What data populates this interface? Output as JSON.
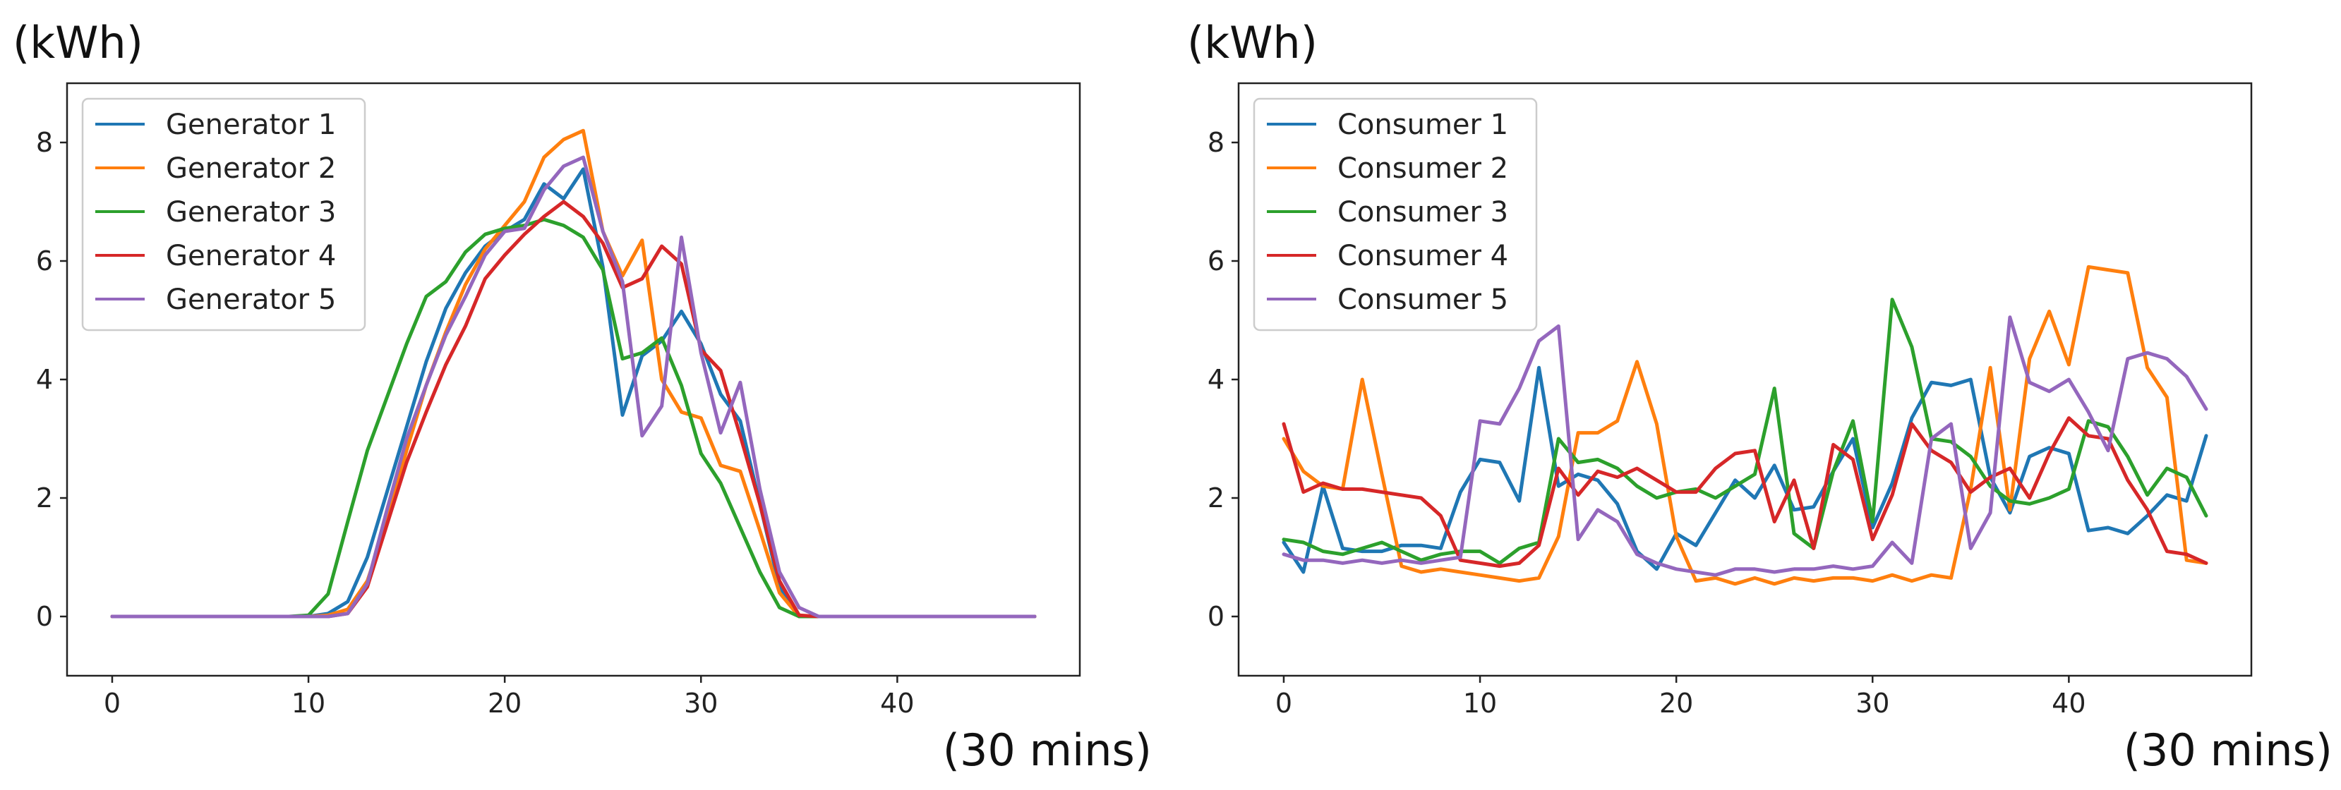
{
  "chart_data": [
    {
      "type": "line",
      "ylabel": "(kWh)",
      "xlabel": "(30 mins)",
      "xlim": [
        -2.3,
        49.3
      ],
      "ylim": [
        -1,
        9
      ],
      "xticks": [
        "0",
        "10",
        "20",
        "30",
        "40"
      ],
      "yticks": [
        "0",
        "2",
        "4",
        "6",
        "8"
      ],
      "legend_position": "top-left",
      "grid": false,
      "series": [
        {
          "name": "Generator 1",
          "color": "#1f77b4",
          "values": [
            0,
            0,
            0,
            0,
            0,
            0,
            0,
            0,
            0,
            0,
            0,
            0.05,
            0.25,
            1.0,
            2.1,
            3.2,
            4.3,
            5.2,
            5.8,
            6.25,
            6.5,
            6.7,
            7.3,
            7.05,
            7.55,
            5.9,
            3.4,
            4.4,
            4.65,
            5.15,
            4.6,
            3.75,
            3.3,
            1.9,
            0.5,
            0,
            0,
            0,
            0,
            0,
            0,
            0,
            0,
            0,
            0,
            0,
            0,
            0
          ]
        },
        {
          "name": "Generator 2",
          "color": "#ff7f0e",
          "values": [
            0,
            0,
            0,
            0,
            0,
            0,
            0,
            0,
            0,
            0,
            0,
            0.02,
            0.12,
            0.6,
            1.6,
            2.8,
            3.9,
            4.8,
            5.6,
            6.2,
            6.6,
            7.0,
            7.75,
            8.05,
            8.2,
            6.5,
            5.75,
            6.35,
            4.0,
            3.45,
            3.35,
            2.55,
            2.45,
            1.45,
            0.4,
            0,
            0,
            0,
            0,
            0,
            0,
            0,
            0,
            0,
            0,
            0,
            0,
            0
          ]
        },
        {
          "name": "Generator 3",
          "color": "#2ca02c",
          "values": [
            0,
            0,
            0,
            0,
            0,
            0,
            0,
            0,
            0,
            0,
            0.02,
            0.38,
            1.6,
            2.8,
            3.7,
            4.6,
            5.4,
            5.65,
            6.15,
            6.45,
            6.55,
            6.6,
            6.7,
            6.6,
            6.4,
            5.85,
            4.35,
            4.45,
            4.7,
            3.9,
            2.75,
            2.25,
            1.5,
            0.75,
            0.15,
            0,
            0,
            0,
            0,
            0,
            0,
            0,
            0,
            0,
            0,
            0,
            0,
            0
          ]
        },
        {
          "name": "Generator 4",
          "color": "#d62728",
          "values": [
            0,
            0,
            0,
            0,
            0,
            0,
            0,
            0,
            0,
            0,
            0,
            0,
            0.05,
            0.5,
            1.55,
            2.6,
            3.45,
            4.25,
            4.9,
            5.7,
            6.1,
            6.45,
            6.75,
            7.0,
            6.75,
            6.3,
            5.55,
            5.7,
            6.25,
            5.95,
            4.5,
            4.15,
            3.05,
            1.9,
            0.6,
            0.02,
            0,
            0,
            0,
            0,
            0,
            0,
            0,
            0,
            0,
            0,
            0,
            0
          ]
        },
        {
          "name": "Generator 5",
          "color": "#9467bd",
          "values": [
            0,
            0,
            0,
            0,
            0,
            0,
            0,
            0,
            0,
            0,
            0,
            0,
            0.05,
            0.55,
            1.8,
            3.0,
            3.9,
            4.75,
            5.4,
            6.1,
            6.5,
            6.55,
            7.2,
            7.6,
            7.75,
            6.5,
            5.65,
            3.05,
            3.55,
            6.4,
            4.45,
            3.1,
            3.95,
            2.15,
            0.75,
            0.15,
            0,
            0,
            0,
            0,
            0,
            0,
            0,
            0,
            0,
            0,
            0,
            0
          ]
        }
      ]
    },
    {
      "type": "line",
      "ylabel": "(kWh)",
      "xlabel": "(30 mins)",
      "xlim": [
        -2.3,
        49.3
      ],
      "ylim": [
        -1,
        9
      ],
      "xticks": [
        "0",
        "10",
        "20",
        "30",
        "40"
      ],
      "yticks": [
        "0",
        "2",
        "4",
        "6",
        "8"
      ],
      "legend_position": "top-left",
      "grid": false,
      "series": [
        {
          "name": "Consumer 1",
          "color": "#1f77b4",
          "values": [
            1.25,
            0.75,
            2.2,
            1.15,
            1.1,
            1.1,
            1.2,
            1.2,
            1.15,
            2.1,
            2.65,
            2.6,
            1.95,
            4.2,
            2.2,
            2.4,
            2.3,
            1.9,
            1.1,
            0.8,
            1.4,
            1.2,
            1.75,
            2.3,
            2.0,
            2.55,
            1.8,
            1.85,
            2.45,
            3.0,
            1.5,
            2.25,
            3.35,
            3.95,
            3.9,
            4.0,
            2.35,
            1.75,
            2.7,
            2.85,
            2.75,
            1.45,
            1.5,
            1.4,
            1.7,
            2.05,
            1.95,
            3.05
          ]
        },
        {
          "name": "Consumer 2",
          "color": "#ff7f0e",
          "values": [
            3.0,
            2.45,
            2.2,
            2.15,
            4.0,
            2.4,
            0.85,
            0.75,
            0.8,
            0.75,
            0.7,
            0.65,
            0.6,
            0.65,
            1.35,
            3.1,
            3.1,
            3.3,
            4.3,
            3.25,
            1.35,
            0.6,
            0.65,
            0.55,
            0.65,
            0.55,
            0.65,
            0.6,
            0.65,
            0.65,
            0.6,
            0.7,
            0.6,
            0.7,
            0.65,
            2.15,
            4.2,
            1.8,
            4.35,
            5.15,
            4.25,
            5.9,
            5.85,
            5.8,
            4.2,
            3.7,
            0.95,
            0.9
          ]
        },
        {
          "name": "Consumer 3",
          "color": "#2ca02c",
          "values": [
            1.3,
            1.25,
            1.1,
            1.05,
            1.15,
            1.25,
            1.1,
            0.95,
            1.05,
            1.1,
            1.1,
            0.9,
            1.15,
            1.25,
            3.0,
            2.6,
            2.65,
            2.5,
            2.2,
            2.0,
            2.1,
            2.15,
            2.0,
            2.2,
            2.4,
            3.85,
            1.4,
            1.15,
            2.45,
            3.3,
            1.6,
            5.35,
            4.55,
            3.0,
            2.95,
            2.7,
            2.2,
            1.95,
            1.9,
            2.0,
            2.15,
            3.3,
            3.2,
            2.7,
            2.05,
            2.5,
            2.35,
            1.7
          ]
        },
        {
          "name": "Consumer 4",
          "color": "#d62728",
          "values": [
            3.25,
            2.1,
            2.25,
            2.15,
            2.15,
            2.1,
            2.05,
            2.0,
            1.7,
            0.95,
            0.9,
            0.85,
            0.9,
            1.2,
            2.5,
            2.05,
            2.45,
            2.35,
            2.5,
            2.3,
            2.1,
            2.1,
            2.5,
            2.75,
            2.8,
            1.6,
            2.3,
            1.15,
            2.9,
            2.65,
            1.3,
            2.05,
            3.25,
            2.8,
            2.6,
            2.1,
            2.35,
            2.5,
            2.0,
            2.75,
            3.35,
            3.05,
            3.0,
            2.3,
            1.8,
            1.1,
            1.05,
            0.9
          ]
        },
        {
          "name": "Consumer 5",
          "color": "#9467bd",
          "values": [
            1.05,
            0.95,
            0.95,
            0.9,
            0.95,
            0.9,
            0.95,
            0.9,
            0.95,
            1.0,
            3.3,
            3.25,
            3.85,
            4.65,
            4.9,
            1.3,
            1.8,
            1.6,
            1.05,
            0.9,
            0.8,
            0.75,
            0.7,
            0.8,
            0.8,
            0.75,
            0.8,
            0.8,
            0.85,
            0.8,
            0.85,
            1.25,
            0.9,
            3.0,
            3.25,
            1.15,
            1.75,
            5.05,
            3.95,
            3.8,
            4.0,
            3.45,
            2.8,
            4.35,
            4.45,
            4.35,
            4.05,
            3.5
          ]
        }
      ]
    }
  ]
}
